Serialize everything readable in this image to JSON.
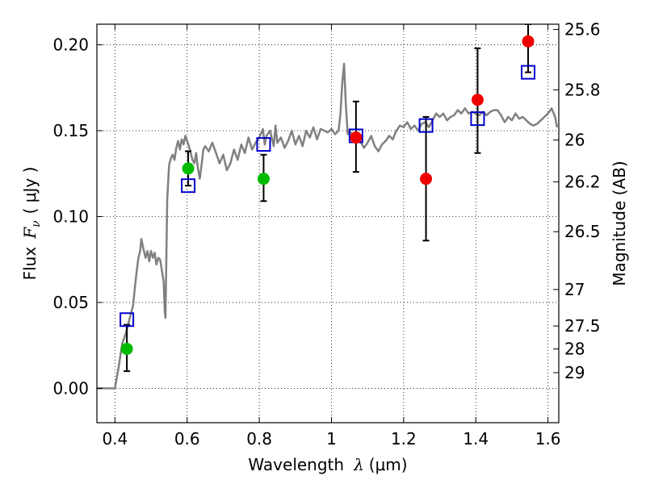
{
  "chart_data": {
    "type": "scatter",
    "xlabel": {
      "prefix": "Wavelength",
      "symbol": "λ",
      "unit": "(μm)"
    },
    "ylabel": {
      "prefix": "Flux",
      "symbol_main": "F",
      "symbol_sub": "ν",
      "unit": "( μJy )"
    },
    "y2label": "Magnitude (AB)",
    "xlim": [
      0.35,
      1.63
    ],
    "ylim": [
      -0.02,
      0.212
    ],
    "x_ticks": [
      0.4,
      0.6,
      0.8,
      1.0,
      1.2,
      1.4,
      1.6
    ],
    "x_tick_labels": [
      "0.4",
      "0.6",
      "0.8",
      "1",
      "1.2",
      "1.4",
      "1.6"
    ],
    "y_ticks": [
      0.0,
      0.05,
      0.1,
      0.15,
      0.2
    ],
    "y_tick_labels": [
      "0.00",
      "0.05",
      "0.10",
      "0.15",
      "0.20"
    ],
    "y2_ticks": [
      "25.6",
      "25.8",
      "26",
      "26.2",
      "26.5",
      "27",
      "27.5",
      "28",
      "29"
    ],
    "grid": true,
    "series": [
      {
        "kind": "line",
        "color": "#808080",
        "points": [
          [
            0.35,
            0.0
          ],
          [
            0.4,
            0.0
          ],
          [
            0.41,
            0.012
          ],
          [
            0.42,
            0.026
          ],
          [
            0.43,
            0.032
          ],
          [
            0.44,
            0.04
          ],
          [
            0.45,
            0.048
          ],
          [
            0.455,
            0.058
          ],
          [
            0.46,
            0.068
          ],
          [
            0.465,
            0.076
          ],
          [
            0.47,
            0.08
          ],
          [
            0.473,
            0.087
          ],
          [
            0.478,
            0.082
          ],
          [
            0.485,
            0.076
          ],
          [
            0.49,
            0.08
          ],
          [
            0.495,
            0.074
          ],
          [
            0.5,
            0.08
          ],
          [
            0.505,
            0.076
          ],
          [
            0.51,
            0.079
          ],
          [
            0.515,
            0.072
          ],
          [
            0.52,
            0.076
          ],
          [
            0.525,
            0.075
          ],
          [
            0.53,
            0.069
          ],
          [
            0.535,
            0.062
          ],
          [
            0.538,
            0.045
          ],
          [
            0.54,
            0.041
          ],
          [
            0.545,
            0.11
          ],
          [
            0.55,
            0.13
          ],
          [
            0.555,
            0.134
          ],
          [
            0.56,
            0.136
          ],
          [
            0.565,
            0.133
          ],
          [
            0.57,
            0.14
          ],
          [
            0.575,
            0.144
          ],
          [
            0.58,
            0.139
          ],
          [
            0.585,
            0.145
          ],
          [
            0.59,
            0.142
          ],
          [
            0.595,
            0.147
          ],
          [
            0.6,
            0.144
          ],
          [
            0.605,
            0.141
          ],
          [
            0.61,
            0.137
          ],
          [
            0.615,
            0.133
          ],
          [
            0.62,
            0.131
          ],
          [
            0.625,
            0.137
          ],
          [
            0.63,
            0.128
          ],
          [
            0.635,
            0.122
          ],
          [
            0.64,
            0.13
          ],
          [
            0.645,
            0.139
          ],
          [
            0.65,
            0.141
          ],
          [
            0.66,
            0.138
          ],
          [
            0.67,
            0.143
          ],
          [
            0.68,
            0.137
          ],
          [
            0.69,
            0.131
          ],
          [
            0.7,
            0.136
          ],
          [
            0.71,
            0.127
          ],
          [
            0.72,
            0.131
          ],
          [
            0.73,
            0.139
          ],
          [
            0.74,
            0.133
          ],
          [
            0.75,
            0.142
          ],
          [
            0.76,
            0.137
          ],
          [
            0.77,
            0.146
          ],
          [
            0.78,
            0.139
          ],
          [
            0.79,
            0.143
          ],
          [
            0.8,
            0.146
          ],
          [
            0.81,
            0.151
          ],
          [
            0.815,
            0.142
          ],
          [
            0.82,
            0.147
          ],
          [
            0.83,
            0.15
          ],
          [
            0.84,
            0.141
          ],
          [
            0.845,
            0.153
          ],
          [
            0.85,
            0.143
          ],
          [
            0.86,
            0.146
          ],
          [
            0.87,
            0.14
          ],
          [
            0.88,
            0.144
          ],
          [
            0.89,
            0.15
          ],
          [
            0.9,
            0.142
          ],
          [
            0.91,
            0.147
          ],
          [
            0.92,
            0.141
          ],
          [
            0.93,
            0.15
          ],
          [
            0.94,
            0.146
          ],
          [
            0.95,
            0.152
          ],
          [
            0.96,
            0.145
          ],
          [
            0.97,
            0.151
          ],
          [
            0.98,
            0.15
          ],
          [
            0.99,
            0.149
          ],
          [
            1.0,
            0.151
          ],
          [
            1.01,
            0.148
          ],
          [
            1.02,
            0.15
          ],
          [
            1.025,
            0.16
          ],
          [
            1.03,
            0.178
          ],
          [
            1.035,
            0.189
          ],
          [
            1.04,
            0.165
          ],
          [
            1.045,
            0.148
          ],
          [
            1.05,
            0.15
          ],
          [
            1.06,
            0.147
          ],
          [
            1.07,
            0.148
          ],
          [
            1.08,
            0.144
          ],
          [
            1.09,
            0.14
          ],
          [
            1.1,
            0.143
          ],
          [
            1.11,
            0.147
          ],
          [
            1.12,
            0.141
          ],
          [
            1.13,
            0.138
          ],
          [
            1.14,
            0.142
          ],
          [
            1.15,
            0.144
          ],
          [
            1.16,
            0.147
          ],
          [
            1.17,
            0.145
          ],
          [
            1.18,
            0.15
          ],
          [
            1.19,
            0.153
          ],
          [
            1.2,
            0.152
          ],
          [
            1.21,
            0.155
          ],
          [
            1.22,
            0.151
          ],
          [
            1.23,
            0.153
          ],
          [
            1.24,
            0.15
          ],
          [
            1.25,
            0.154
          ],
          [
            1.26,
            0.155
          ],
          [
            1.27,
            0.152
          ],
          [
            1.28,
            0.156
          ],
          [
            1.29,
            0.16
          ],
          [
            1.3,
            0.158
          ],
          [
            1.31,
            0.16
          ],
          [
            1.32,
            0.156
          ],
          [
            1.33,
            0.158
          ],
          [
            1.34,
            0.159
          ],
          [
            1.35,
            0.162
          ],
          [
            1.36,
            0.16
          ],
          [
            1.37,
            0.163
          ],
          [
            1.38,
            0.16
          ],
          [
            1.39,
            0.161
          ],
          [
            1.4,
            0.16
          ],
          [
            1.41,
            0.159
          ],
          [
            1.42,
            0.161
          ],
          [
            1.43,
            0.159
          ],
          [
            1.44,
            0.161
          ],
          [
            1.45,
            0.162
          ],
          [
            1.46,
            0.162
          ],
          [
            1.47,
            0.159
          ],
          [
            1.48,
            0.155
          ],
          [
            1.49,
            0.158
          ],
          [
            1.5,
            0.156
          ],
          [
            1.51,
            0.16
          ],
          [
            1.52,
            0.157
          ],
          [
            1.53,
            0.158
          ],
          [
            1.54,
            0.156
          ],
          [
            1.55,
            0.154
          ],
          [
            1.56,
            0.153
          ],
          [
            1.57,
            0.154
          ],
          [
            1.58,
            0.156
          ],
          [
            1.59,
            0.158
          ],
          [
            1.6,
            0.16
          ],
          [
            1.61,
            0.163
          ],
          [
            1.62,
            0.158
          ],
          [
            1.625,
            0.152
          ]
        ]
      },
      {
        "kind": "open-square",
        "color": "#0000cc",
        "points": [
          [
            0.433,
            0.04
          ],
          [
            0.603,
            0.118
          ],
          [
            0.812,
            0.142
          ],
          [
            1.068,
            0.147
          ],
          [
            1.262,
            0.153
          ],
          [
            1.405,
            0.157
          ],
          [
            1.545,
            0.184
          ]
        ]
      },
      {
        "kind": "filled-circle",
        "color": "#00bb00",
        "points": [
          [
            0.433,
            0.023
          ],
          [
            0.603,
            0.128
          ],
          [
            0.812,
            0.122
          ]
        ]
      },
      {
        "kind": "filled-circle",
        "color": "#ee0000",
        "points": [
          [
            1.068,
            0.146
          ],
          [
            1.262,
            0.122
          ],
          [
            1.405,
            0.168
          ],
          [
            1.545,
            0.202
          ]
        ]
      },
      {
        "kind": "errorbar",
        "color": "#000000",
        "bars": [
          [
            0.433,
            0.01,
            0.037
          ],
          [
            0.603,
            0.118,
            0.138
          ],
          [
            0.812,
            0.109,
            0.136
          ],
          [
            1.068,
            0.126,
            0.167
          ],
          [
            1.262,
            0.086,
            0.158
          ],
          [
            1.405,
            0.137,
            0.198
          ],
          [
            1.545,
            0.184,
            0.212
          ]
        ]
      }
    ]
  }
}
